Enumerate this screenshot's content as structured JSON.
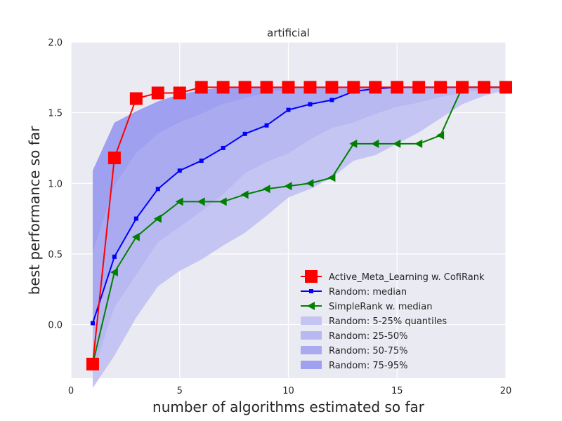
{
  "chart_data": {
    "type": "line",
    "title": "artificial",
    "xlabel": "number of algorithms estimated so far",
    "ylabel": "best performance so far",
    "xlim": [
      0,
      20
    ],
    "ylim": [
      -0.38,
      2.0
    ],
    "xticks": [
      "0",
      "5",
      "10",
      "15",
      "20"
    ],
    "yticks": [
      "0.0",
      "0.5",
      "1.0",
      "1.5",
      "2.0"
    ],
    "grid": true,
    "legend_position": "lower-right",
    "x": [
      1,
      2,
      3,
      4,
      5,
      6,
      7,
      8,
      9,
      10,
      11,
      12,
      13,
      14,
      15,
      16,
      17,
      18,
      19,
      20
    ],
    "series": [
      {
        "name": "Active_Meta_Learning w. CofiRank",
        "color": "#ff0000",
        "marker": "square-large",
        "values": [
          -0.28,
          1.18,
          1.6,
          1.64,
          1.64,
          1.68,
          1.68,
          1.68,
          1.68,
          1.68,
          1.68,
          1.68,
          1.68,
          1.68,
          1.68,
          1.68,
          1.68,
          1.68,
          1.68,
          1.68
        ]
      },
      {
        "name": "Random: median",
        "color": "#0000ff",
        "marker": "square-small",
        "values": [
          0.01,
          0.48,
          0.75,
          0.96,
          1.09,
          1.16,
          1.25,
          1.35,
          1.41,
          1.52,
          1.56,
          1.59,
          1.65,
          1.67,
          1.68,
          1.68,
          1.68,
          1.68,
          1.68,
          1.68
        ]
      },
      {
        "name": "SimpleRank w. median",
        "color": "#008000",
        "marker": "triangle-left",
        "values": [
          -0.28,
          0.37,
          0.62,
          0.75,
          0.87,
          0.87,
          0.87,
          0.92,
          0.96,
          0.98,
          1.0,
          1.04,
          1.28,
          1.28,
          1.28,
          1.28,
          1.34,
          1.68,
          1.68,
          1.68
        ]
      }
    ],
    "bands": [
      {
        "name": "Random: 5-25% quantiles",
        "color": "#c5c5f3",
        "lower": [
          -0.45,
          -0.22,
          0.05,
          0.27,
          0.38,
          0.46,
          0.56,
          0.65,
          0.77,
          0.9,
          0.96,
          1.04,
          1.16,
          1.2,
          1.28,
          1.36,
          1.46,
          1.56,
          1.62,
          1.66
        ],
        "upper": [
          -0.35,
          0.12,
          0.35,
          0.58,
          0.69,
          0.8,
          0.92,
          1.07,
          1.15,
          1.21,
          1.31,
          1.39,
          1.43,
          1.49,
          1.54,
          1.57,
          1.61,
          1.64,
          1.66,
          1.68
        ]
      },
      {
        "name": "Random: 25-50%",
        "color": "#b9b9f1",
        "lower": [
          -0.35,
          0.12,
          0.35,
          0.58,
          0.69,
          0.8,
          0.92,
          1.07,
          1.15,
          1.21,
          1.31,
          1.39,
          1.43,
          1.49,
          1.54,
          1.57,
          1.61,
          1.64,
          1.66,
          1.68
        ],
        "upper": [
          0.01,
          0.48,
          0.75,
          0.96,
          1.09,
          1.16,
          1.25,
          1.35,
          1.41,
          1.52,
          1.56,
          1.59,
          1.65,
          1.67,
          1.68,
          1.68,
          1.68,
          1.68,
          1.68,
          1.68
        ]
      },
      {
        "name": "Random: 50-75%",
        "color": "#aaaaf0",
        "lower": [
          0.01,
          0.48,
          0.75,
          0.96,
          1.09,
          1.16,
          1.25,
          1.35,
          1.41,
          1.52,
          1.56,
          1.59,
          1.65,
          1.67,
          1.68,
          1.68,
          1.68,
          1.68,
          1.68,
          1.68
        ],
        "upper": [
          0.5,
          0.98,
          1.21,
          1.35,
          1.43,
          1.49,
          1.56,
          1.6,
          1.64,
          1.66,
          1.68,
          1.68,
          1.68,
          1.68,
          1.68,
          1.68,
          1.68,
          1.68,
          1.68,
          1.68
        ]
      },
      {
        "name": "Random: 75-95%",
        "color": "#a0a0f0",
        "lower": [
          0.5,
          0.98,
          1.21,
          1.35,
          1.43,
          1.49,
          1.56,
          1.6,
          1.64,
          1.66,
          1.68,
          1.68,
          1.68,
          1.68,
          1.68,
          1.68,
          1.68,
          1.68,
          1.68,
          1.68
        ],
        "upper": [
          1.09,
          1.43,
          1.51,
          1.58,
          1.63,
          1.66,
          1.68,
          1.68,
          1.68,
          1.68,
          1.68,
          1.68,
          1.68,
          1.68,
          1.68,
          1.68,
          1.68,
          1.68,
          1.68,
          1.68
        ]
      }
    ],
    "background_color": "#eaeaf2",
    "grid_color": "#ffffff"
  }
}
